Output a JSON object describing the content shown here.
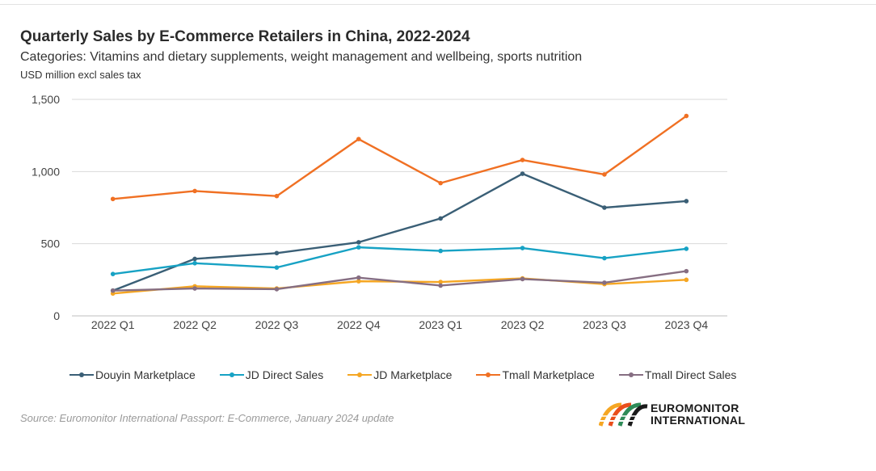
{
  "title": "Quarterly Sales by E-Commerce Retailers in China, 2022-2024",
  "subtitle": "Categories: Vitamins and dietary supplements, weight management and wellbeing, sports nutrition",
  "units": "USD million excl sales tax",
  "source": "Source: Euromonitor International Passport: E-Commerce, January 2024 update",
  "logo": {
    "line1": "EUROMONITOR",
    "line2": "INTERNATIONAL"
  },
  "chart_data": {
    "type": "line",
    "categories": [
      "2022 Q1",
      "2022 Q2",
      "2022 Q3",
      "2022 Q4",
      "2023 Q1",
      "2023 Q2",
      "2023 Q3",
      "2023 Q4"
    ],
    "ylim": [
      0,
      1500
    ],
    "yticks": [
      0,
      500,
      1000,
      1500
    ],
    "ytick_labels": [
      "0",
      "500",
      "1,000",
      "1,500"
    ],
    "grid": true,
    "legend_position": "bottom",
    "series": [
      {
        "name": "Douyin Marketplace",
        "color": "#3a5f76",
        "values": [
          175,
          395,
          435,
          510,
          675,
          985,
          750,
          795
        ]
      },
      {
        "name": "JD Direct Sales",
        "color": "#17a2c4",
        "values": [
          290,
          365,
          335,
          475,
          450,
          470,
          400,
          465
        ]
      },
      {
        "name": "JD Marketplace",
        "color": "#f5a623",
        "values": [
          155,
          205,
          190,
          240,
          235,
          260,
          220,
          250
        ]
      },
      {
        "name": "Tmall Marketplace",
        "color": "#f07023",
        "values": [
          810,
          865,
          830,
          1225,
          920,
          1080,
          980,
          1385
        ]
      },
      {
        "name": "Tmall Direct Sales",
        "color": "#866e82",
        "values": [
          175,
          190,
          185,
          265,
          210,
          255,
          230,
          310
        ]
      }
    ]
  }
}
